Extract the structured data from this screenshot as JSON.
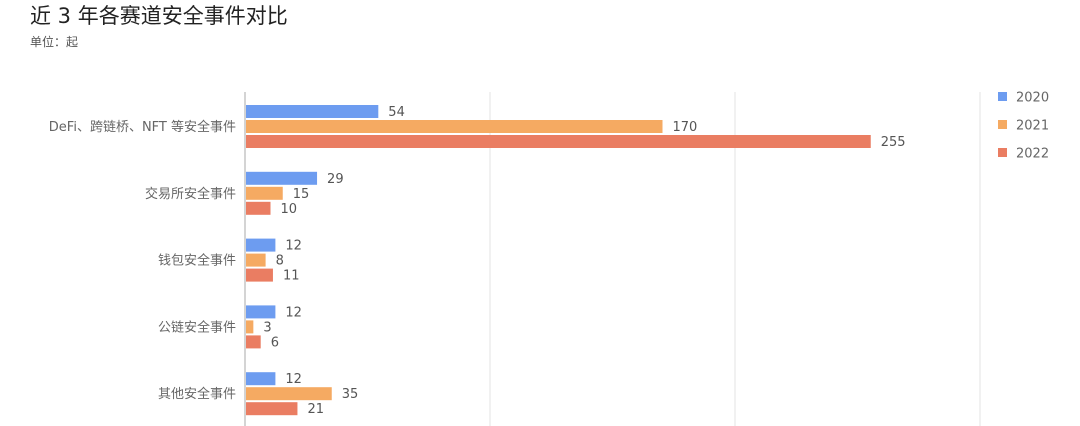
{
  "header": {
    "title": "近 3 年各赛道安全事件对比",
    "unit": "单位：起"
  },
  "chart_data": {
    "type": "bar",
    "orientation": "horizontal",
    "title": "近 3 年各赛道安全事件对比",
    "subtitle": "单位：起",
    "categories": [
      "DeFi、跨链桥、NFT 等安全事件",
      "交易所安全事件",
      "钱包安全事件",
      "公链安全事件",
      "其他安全事件"
    ],
    "series": [
      {
        "name": "2020",
        "color": "#6d9cf0",
        "values": [
          54,
          29,
          12,
          12,
          12
        ]
      },
      {
        "name": "2021",
        "color": "#f5aa62",
        "values": [
          170,
          15,
          8,
          3,
          35
        ]
      },
      {
        "name": "2022",
        "color": "#ea7d62",
        "values": [
          255,
          10,
          11,
          6,
          21
        ]
      }
    ],
    "xlim": [
      0,
      300
    ],
    "grid": true,
    "legend_position": "top-right",
    "data_labels": true
  }
}
